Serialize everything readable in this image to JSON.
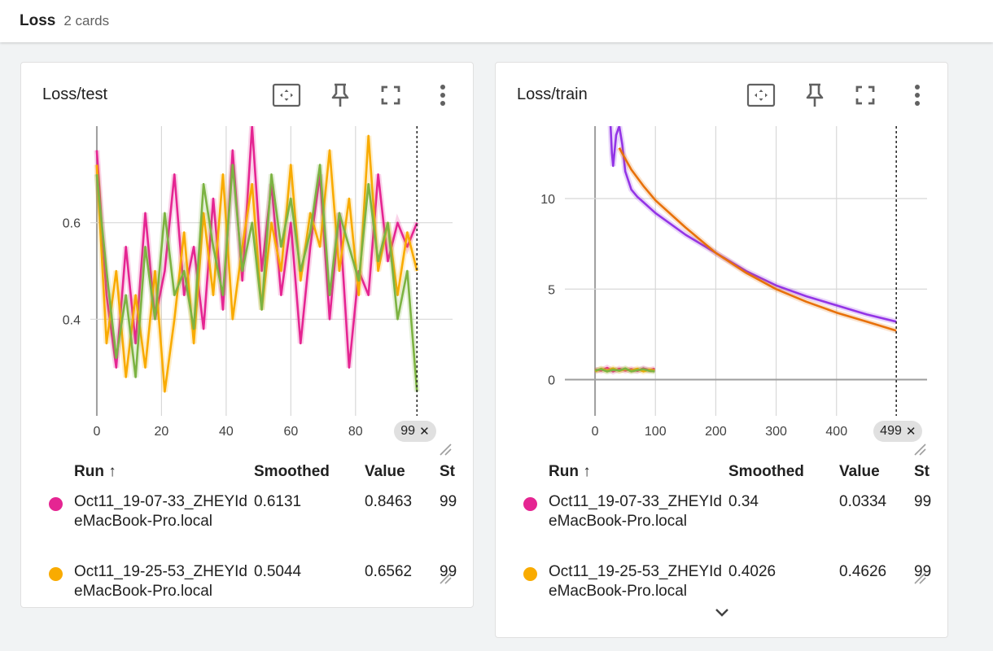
{
  "group": {
    "title": "Loss",
    "count": "2 cards"
  },
  "colors": {
    "pink": "#e52592",
    "orange": "#f9ab00",
    "green": "#7cb342",
    "dark_orange": "#e8710a",
    "purple": "#9334e6",
    "grid": "#d8d8d8",
    "axis": "#9e9e9e"
  },
  "icons": [
    "fit-domain-icon",
    "pin-icon",
    "fullscreen-icon",
    "more-vert-icon"
  ],
  "cards": [
    {
      "title": "Loss/test",
      "step_chip": "99",
      "columns": {
        "run": "Run",
        "sort_arrow": "↑",
        "smoothed": "Smoothed",
        "value": "Value",
        "step": "St"
      },
      "rows": [
        {
          "name": "Oct11_19-07-33_ZHEYIdeMacBook-Pro.local",
          "smoothed": "0.6131",
          "value": "0.8463",
          "step": "99",
          "color": "#e52592"
        },
        {
          "name": "Oct11_19-25-53_ZHEYIdeMacBook-Pro.local",
          "smoothed": "0.5044",
          "value": "0.6562",
          "step": "99",
          "color": "#f9ab00"
        }
      ],
      "chart_data": {
        "type": "line",
        "x_ticks": [
          "0",
          "20",
          "40",
          "60",
          "80"
        ],
        "y_ticks": [
          "0.4",
          "0.6"
        ],
        "xlim": [
          -2,
          110
        ],
        "ylim": [
          0.2,
          0.8
        ],
        "cursor_step": 99,
        "series": [
          {
            "color": "#e52592",
            "x": [
              0,
              3,
              6,
              9,
              12,
              15,
              18,
              21,
              24,
              27,
              30,
              33,
              36,
              39,
              42,
              45,
              48,
              51,
              54,
              57,
              60,
              63,
              66,
              69,
              72,
              75,
              78,
              81,
              84,
              87,
              90,
              93,
              96,
              99
            ],
            "y": [
              0.75,
              0.45,
              0.3,
              0.55,
              0.35,
              0.62,
              0.4,
              0.5,
              0.7,
              0.45,
              0.55,
              0.38,
              0.65,
              0.42,
              0.75,
              0.48,
              0.8,
              0.5,
              0.68,
              0.45,
              0.6,
              0.35,
              0.55,
              0.7,
              0.4,
              0.62,
              0.3,
              0.5,
              0.45,
              0.7,
              0.52,
              0.6,
              0.55,
              0.6
            ]
          },
          {
            "color": "#f9ab00",
            "x": [
              0,
              3,
              6,
              9,
              12,
              15,
              18,
              21,
              24,
              27,
              30,
              33,
              36,
              39,
              42,
              45,
              48,
              51,
              54,
              57,
              60,
              63,
              66,
              69,
              72,
              75,
              78,
              81,
              84,
              87,
              90,
              93,
              96,
              99
            ],
            "y": [
              0.72,
              0.35,
              0.5,
              0.28,
              0.45,
              0.3,
              0.5,
              0.25,
              0.4,
              0.58,
              0.35,
              0.62,
              0.45,
              0.7,
              0.4,
              0.55,
              0.68,
              0.42,
              0.6,
              0.5,
              0.72,
              0.48,
              0.62,
              0.55,
              0.75,
              0.5,
              0.65,
              0.45,
              0.78,
              0.5,
              0.6,
              0.45,
              0.58,
              0.5
            ]
          },
          {
            "color": "#7cb342",
            "x": [
              0,
              3,
              6,
              9,
              12,
              15,
              18,
              21,
              24,
              27,
              30,
              33,
              36,
              39,
              42,
              45,
              48,
              51,
              54,
              57,
              60,
              63,
              66,
              69,
              72,
              75,
              78,
              81,
              84,
              87,
              90,
              93,
              96,
              99
            ],
            "y": [
              0.7,
              0.5,
              0.32,
              0.45,
              0.28,
              0.55,
              0.4,
              0.62,
              0.45,
              0.5,
              0.38,
              0.68,
              0.55,
              0.45,
              0.72,
              0.5,
              0.6,
              0.42,
              0.7,
              0.55,
              0.65,
              0.5,
              0.58,
              0.72,
              0.45,
              0.62,
              0.55,
              0.48,
              0.68,
              0.52,
              0.6,
              0.4,
              0.5,
              0.25
            ]
          }
        ]
      }
    },
    {
      "title": "Loss/train",
      "step_chip": "499",
      "columns": {
        "run": "Run",
        "sort_arrow": "↑",
        "smoothed": "Smoothed",
        "value": "Value",
        "step": "St"
      },
      "rows": [
        {
          "name": "Oct11_19-07-33_ZHEYIdeMacBook-Pro.local",
          "smoothed": "0.34",
          "value": "0.0334",
          "step": "99",
          "color": "#e52592"
        },
        {
          "name": "Oct11_19-25-53_ZHEYIdeMacBook-Pro.local",
          "smoothed": "0.4026",
          "value": "0.4626",
          "step": "99",
          "color": "#f9ab00"
        }
      ],
      "chart_data": {
        "type": "line",
        "x_ticks": [
          "0",
          "100",
          "200",
          "300",
          "400"
        ],
        "y_ticks": [
          "0",
          "5",
          "10"
        ],
        "xlim": [
          -50,
          550
        ],
        "ylim": [
          -2,
          14
        ],
        "cursor_step": 499,
        "series": [
          {
            "color": "#9334e6",
            "x": [
              25,
              28,
              30,
              35,
              40,
              45,
              50,
              60,
              70,
              80,
              100,
              150,
              200,
              250,
              300,
              350,
              400,
              450,
              499
            ],
            "y": [
              14.5,
              12.5,
              11.8,
              13.5,
              14.0,
              13.0,
              11.5,
              10.5,
              10.1,
              9.8,
              9.2,
              8.0,
              7.0,
              6.0,
              5.2,
              4.6,
              4.1,
              3.6,
              3.2
            ]
          },
          {
            "color": "#e8710a",
            "x": [
              40,
              50,
              60,
              80,
              100,
              150,
              200,
              250,
              300,
              350,
              400,
              450,
              499
            ],
            "y": [
              12.8,
              12.2,
              11.6,
              10.7,
              9.9,
              8.4,
              7.0,
              5.9,
              5.0,
              4.3,
              3.7,
              3.2,
              2.7
            ]
          },
          {
            "color": "#e52592",
            "x": [
              0,
              10,
              20,
              30,
              40,
              50,
              60,
              70,
              80,
              90,
              99
            ],
            "y": [
              0.55,
              0.5,
              0.65,
              0.45,
              0.6,
              0.5,
              0.58,
              0.48,
              0.62,
              0.52,
              0.6
            ]
          },
          {
            "color": "#f9ab00",
            "x": [
              0,
              10,
              20,
              30,
              40,
              50,
              60,
              70,
              80,
              90,
              99
            ],
            "y": [
              0.45,
              0.6,
              0.5,
              0.62,
              0.48,
              0.58,
              0.5,
              0.6,
              0.45,
              0.55,
              0.5
            ]
          },
          {
            "color": "#7cb342",
            "x": [
              0,
              10,
              20,
              30,
              40,
              50,
              60,
              70,
              80,
              90,
              99
            ],
            "y": [
              0.5,
              0.58,
              0.45,
              0.55,
              0.5,
              0.62,
              0.45,
              0.52,
              0.58,
              0.48,
              0.45
            ]
          }
        ]
      }
    }
  ]
}
